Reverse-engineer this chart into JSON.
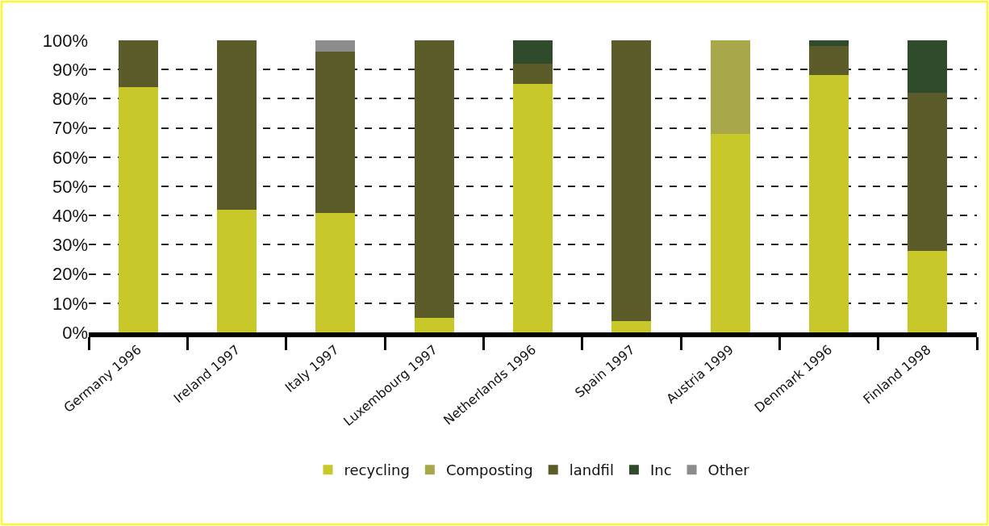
{
  "chart_data": {
    "type": "bar",
    "stacked": true,
    "categories": [
      "Germany 1996",
      "Ireland 1997",
      "Italy 1997",
      "Luxembourg 1997",
      "Netherlands 1996",
      "Spain 1997",
      "Austria 1999",
      "Denmark 1996",
      "Finland 1998"
    ],
    "series": [
      {
        "name": "recycling",
        "color": "#c8c82a",
        "values": [
          84,
          42,
          41,
          5,
          85,
          4,
          68,
          88,
          28
        ]
      },
      {
        "name": "Composting",
        "color": "#a8a84a",
        "values": [
          0,
          0,
          0,
          0,
          0,
          0,
          32,
          0,
          0
        ]
      },
      {
        "name": "landfil",
        "color": "#5c5c2a",
        "values": [
          16,
          58,
          55,
          95,
          7,
          96,
          0,
          10,
          54
        ]
      },
      {
        "name": "Inc",
        "color": "#304a2c",
        "values": [
          0,
          0,
          0,
          0,
          8,
          0,
          0,
          2,
          18
        ]
      },
      {
        "name": "Other",
        "color": "#8c8c8c",
        "values": [
          0,
          0,
          4,
          0,
          0,
          0,
          0,
          0,
          0
        ]
      }
    ],
    "ylim": [
      0,
      100
    ],
    "yticks": [
      {
        "value": 0,
        "label": "0%"
      },
      {
        "value": 10,
        "label": "10%"
      },
      {
        "value": 20,
        "label": "20%"
      },
      {
        "value": 30,
        "label": "30%"
      },
      {
        "value": 40,
        "label": "40%"
      },
      {
        "value": 50,
        "label": "50%"
      },
      {
        "value": 60,
        "label": "60%"
      },
      {
        "value": 70,
        "label": "70%"
      },
      {
        "value": 80,
        "label": "80%"
      },
      {
        "value": 90,
        "label": "90%"
      },
      {
        "value": 100,
        "label": "100%"
      }
    ],
    "grid": "y",
    "legend": "bottom"
  }
}
